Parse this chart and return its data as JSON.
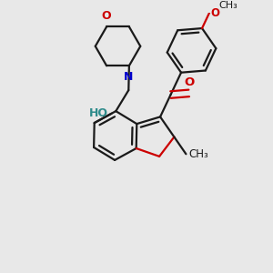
{
  "background_color": "#e8e8e8",
  "bond_color": "#1a1a1a",
  "oxygen_color": "#cc0000",
  "nitrogen_color": "#0000cc",
  "ho_color": "#2e8b8b",
  "line_width": 1.6,
  "font_size": 8.5,
  "fig_width": 3.0,
  "fig_height": 3.0,
  "dpi": 100,
  "xlim": [
    0.0,
    3.0
  ],
  "ylim": [
    0.2,
    3.2
  ]
}
